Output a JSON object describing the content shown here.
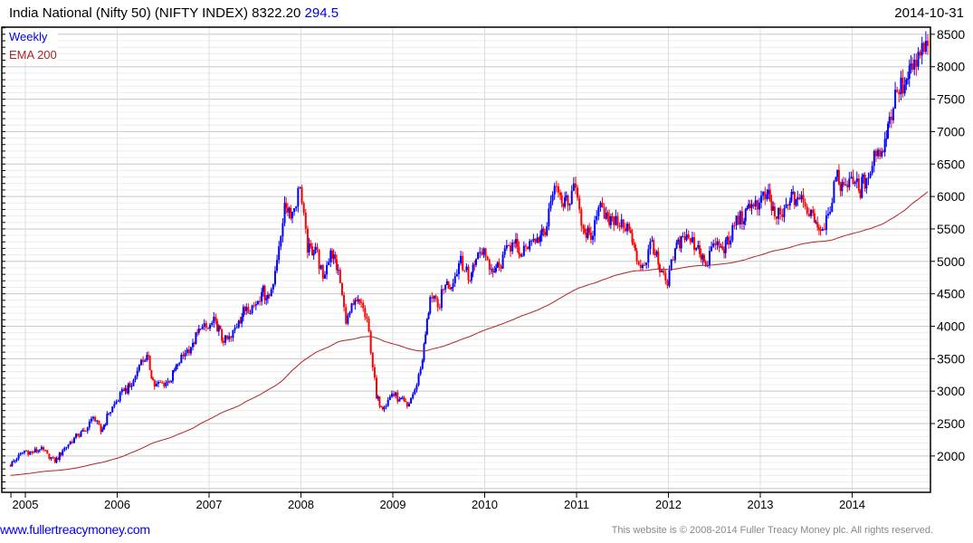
{
  "header": {
    "title": "India National (Nifty 50) (NIFTY INDEX) 8322.20",
    "change": "294.5",
    "date": "2014-10-31"
  },
  "footer": {
    "link": "www.fullertreacymoney.com",
    "copyright": "This website is © 2008-2014 Fuller Treacy Money plc. All rights reserved."
  },
  "chart_data": {
    "type": "candlestick",
    "title": "India National (Nifty 50) (NIFTY INDEX)",
    "legend": [
      {
        "label": "Weekly",
        "color": "#0000ee"
      },
      {
        "label": "EMA 200",
        "color": "#b22222"
      }
    ],
    "legend_position": "top-left",
    "colors": {
      "up": "#0000ff",
      "down": "#ff0000",
      "ema": "#b22222"
    },
    "ylim": [
      1440,
      8610
    ],
    "yticks": [
      2000,
      2500,
      3000,
      3500,
      4000,
      4500,
      5000,
      5500,
      6000,
      6500,
      7000,
      7500,
      8000,
      8500
    ],
    "xticks": [
      "2005",
      "2006",
      "2007",
      "2008",
      "2009",
      "2010",
      "2011",
      "2012",
      "2013",
      "2014"
    ],
    "grid": true,
    "ema_period_weeks": 200,
    "ema_start": 1700,
    "start": "2004-11",
    "monthly_closes": [
      1958,
      2081,
      2057,
      2103,
      2036,
      1902,
      2087,
      2221,
      2312,
      2385,
      2601,
      2371,
      2652,
      2837,
      3001,
      3075,
      3403,
      3558,
      3071,
      3128,
      3143,
      3414,
      3588,
      3744,
      3955,
      3966,
      4082,
      3745,
      3822,
      4087,
      4296,
      4318,
      4529,
      4464,
      5021,
      5900,
      5762,
      6139,
      5137,
      5224,
      4735,
      5166,
      4870,
      4040,
      4333,
      4360,
      3921,
      2885,
      2755,
      2959,
      2874,
      2763,
      3021,
      3474,
      4449,
      4291,
      4636,
      4662,
      5084,
      4712,
      5033,
      5201,
      4882,
      4922,
      5249,
      5278,
      5087,
      5313,
      5368,
      5402,
      6030,
      6018,
      5863,
      6135,
      5506,
      5334,
      5834,
      5750,
      5560,
      5647,
      5482,
      5001,
      4943,
      5327,
      4832,
      4624,
      5199,
      5385,
      5296,
      5248,
      4924,
      5279,
      5229,
      5259,
      5703,
      5619,
      5880,
      5905,
      6035,
      5693,
      5683,
      5930,
      5986,
      5842,
      5742,
      5471,
      5735,
      6299,
      6176,
      6304,
      6090,
      6277,
      6704,
      6696,
      7230,
      7611,
      7721,
      7954,
      8173,
      8322
    ],
    "last_close": 8322.2
  }
}
